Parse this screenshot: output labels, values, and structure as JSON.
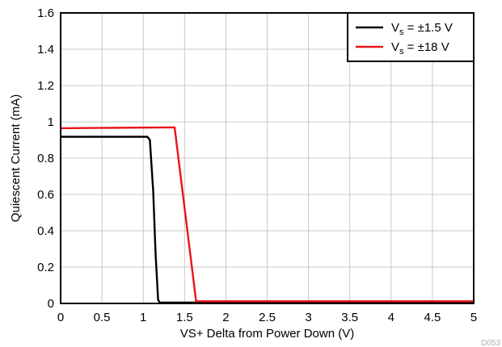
{
  "chart_data": {
    "type": "line",
    "xlabel": "VS+ Delta from Power Down (V)",
    "ylabel": "Quiescent Current (mA)",
    "xlim": [
      0,
      5
    ],
    "ylim": [
      0,
      1.6
    ],
    "xticks": [
      "0",
      "0.5",
      "1",
      "1.5",
      "2",
      "2.5",
      "3",
      "3.5",
      "4",
      "4.5",
      "5"
    ],
    "yticks": [
      "0",
      "0.2",
      "0.4",
      "0.6",
      "0.8",
      "1",
      "1.2",
      "1.4",
      "1.6"
    ],
    "grid": true,
    "legend_position": "top-right",
    "series": [
      {
        "name": "Vs = ±1.5 V",
        "name_main": "V",
        "name_sub": "s",
        "name_rest": " = ±1.5 V",
        "color": "#000000",
        "x": [
          0,
          1.05,
          1.08,
          1.12,
          1.15,
          1.18,
          1.2,
          1.25,
          5
        ],
        "y": [
          0.918,
          0.918,
          0.9,
          0.62,
          0.27,
          0.02,
          0.005,
          0.005,
          0.005
        ]
      },
      {
        "name": "Vs = ±18 V",
        "name_main": "V",
        "name_sub": "s",
        "name_rest": " = ±18 V",
        "color": "#e8141b",
        "x": [
          0,
          1.38,
          1.64,
          5
        ],
        "y": [
          0.965,
          0.97,
          0.012,
          0.012
        ]
      }
    ],
    "figure_id": "D053"
  }
}
